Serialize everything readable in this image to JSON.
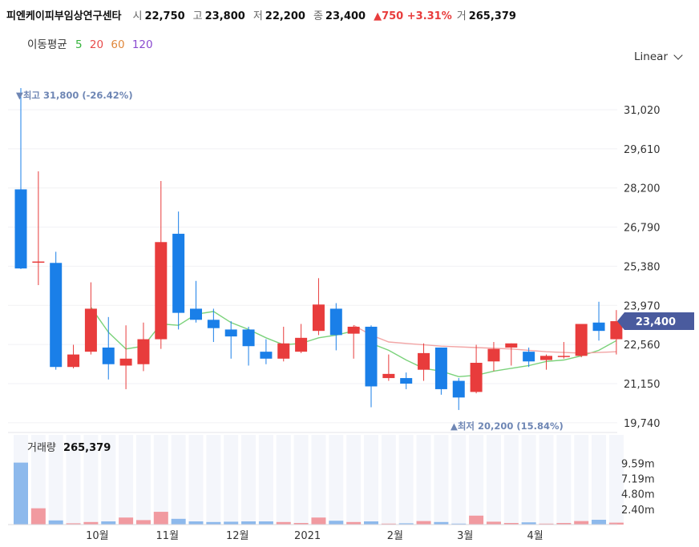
{
  "header": {
    "name": "피엔케이피부임상연구센타",
    "open_label": "시",
    "open": "22,750",
    "high_label": "고",
    "high": "23,800",
    "low_label": "저",
    "low": "22,200",
    "close_label": "종",
    "close": "23,400",
    "change_text": "▲750 +3.31%",
    "volume_label": "거",
    "volume": "265,379"
  },
  "ma_legend": {
    "title": "이동평균",
    "periods": [
      {
        "label": "5",
        "color": "#35b43c"
      },
      {
        "label": "20",
        "color": "#e84b4b"
      },
      {
        "label": "60",
        "color": "#e0873a"
      },
      {
        "label": "120",
        "color": "#8a4ad0"
      }
    ]
  },
  "scale_selector": {
    "label": "Linear"
  },
  "colors": {
    "up": "#e83c3c",
    "down": "#1a7fe8",
    "ma5": "#7ad27a",
    "ma20": "#f2a5a5",
    "current_tag": "#4a5b9e"
  },
  "chart_data": {
    "type": "candlestick",
    "price_axis": {
      "ticks": [
        31020,
        29610,
        28200,
        26790,
        25380,
        23970,
        22560,
        21150,
        19740
      ],
      "tick_labels": [
        "31,020",
        "29,610",
        "28,200",
        "26,790",
        "25,380",
        "23,970",
        "22,560",
        "21,150",
        "19,740"
      ]
    },
    "current_price": {
      "value": 23400,
      "label": "23,400"
    },
    "annotations": {
      "high": {
        "value": 31800,
        "text": "▼최고 31,800 (-26.42%)"
      },
      "low": {
        "value": 20200,
        "text": "▲최저 20,200 (15.84%)"
      }
    },
    "x_labels": [
      {
        "index": 4,
        "label": "10월"
      },
      {
        "index": 8,
        "label": "11월"
      },
      {
        "index": 12,
        "label": "12월"
      },
      {
        "index": 16,
        "label": "2021"
      },
      {
        "index": 21,
        "label": "2월"
      },
      {
        "index": 25,
        "label": "3월"
      },
      {
        "index": 29,
        "label": "4월"
      }
    ],
    "candles": [
      {
        "o": 28150,
        "h": 31800,
        "l": 25280,
        "c": 25300
      },
      {
        "o": 25550,
        "h": 28800,
        "l": 24700,
        "c": 25550
      },
      {
        "o": 25500,
        "h": 25900,
        "l": 21650,
        "c": 21750
      },
      {
        "o": 21750,
        "h": 22550,
        "l": 21700,
        "c": 22200
      },
      {
        "o": 22300,
        "h": 24800,
        "l": 22200,
        "c": 23850
      },
      {
        "o": 22450,
        "h": 23550,
        "l": 21300,
        "c": 21850
      },
      {
        "o": 21800,
        "h": 23250,
        "l": 20950,
        "c": 22050
      },
      {
        "o": 21850,
        "h": 23350,
        "l": 21600,
        "c": 22750
      },
      {
        "o": 22750,
        "h": 28450,
        "l": 22400,
        "c": 26250
      },
      {
        "o": 26550,
        "h": 27350,
        "l": 23100,
        "c": 23700
      },
      {
        "o": 23850,
        "h": 24850,
        "l": 23350,
        "c": 23450
      },
      {
        "o": 23450,
        "h": 23850,
        "l": 22650,
        "c": 23150
      },
      {
        "o": 23100,
        "h": 23400,
        "l": 22050,
        "c": 22850
      },
      {
        "o": 23100,
        "h": 23200,
        "l": 21800,
        "c": 22500
      },
      {
        "o": 22300,
        "h": 22750,
        "l": 21850,
        "c": 22050
      },
      {
        "o": 22050,
        "h": 23200,
        "l": 21950,
        "c": 22600
      },
      {
        "o": 22300,
        "h": 23300,
        "l": 22250,
        "c": 22800
      },
      {
        "o": 23050,
        "h": 24950,
        "l": 22900,
        "c": 24000
      },
      {
        "o": 23850,
        "h": 24050,
        "l": 22350,
        "c": 22900
      },
      {
        "o": 22950,
        "h": 23250,
        "l": 22050,
        "c": 23200
      },
      {
        "o": 23200,
        "h": 23250,
        "l": 20300,
        "c": 21050
      },
      {
        "o": 21350,
        "h": 22200,
        "l": 21250,
        "c": 21500
      },
      {
        "o": 21350,
        "h": 21550,
        "l": 20950,
        "c": 21150
      },
      {
        "o": 21650,
        "h": 22600,
        "l": 21250,
        "c": 22250
      },
      {
        "o": 22450,
        "h": 22450,
        "l": 20750,
        "c": 20950
      },
      {
        "o": 21250,
        "h": 21350,
        "l": 20200,
        "c": 20650
      },
      {
        "o": 20850,
        "h": 22550,
        "l": 20800,
        "c": 21900
      },
      {
        "o": 21950,
        "h": 22650,
        "l": 21600,
        "c": 22400
      },
      {
        "o": 22450,
        "h": 22600,
        "l": 21800,
        "c": 22600
      },
      {
        "o": 22300,
        "h": 22450,
        "l": 21750,
        "c": 21950
      },
      {
        "o": 22000,
        "h": 22200,
        "l": 21650,
        "c": 22150
      },
      {
        "o": 22150,
        "h": 22650,
        "l": 22050,
        "c": 22150
      },
      {
        "o": 22150,
        "h": 23300,
        "l": 22100,
        "c": 23300
      },
      {
        "o": 23350,
        "h": 24100,
        "l": 22700,
        "c": 23050
      },
      {
        "o": 22750,
        "h": 23800,
        "l": 22200,
        "c": 23400
      }
    ],
    "ma5": [
      null,
      null,
      null,
      null,
      {
        "i": 4,
        "v": 23900
      },
      {
        "i": 5,
        "v": 23000
      },
      {
        "i": 6,
        "v": 22400
      },
      {
        "i": 7,
        "v": 22500
      },
      {
        "i": 8,
        "v": 23300
      },
      {
        "i": 9,
        "v": 23250
      },
      {
        "i": 10,
        "v": 23650
      },
      {
        "i": 11,
        "v": 23750
      },
      {
        "i": 12,
        "v": 23350
      },
      {
        "i": 13,
        "v": 23100
      },
      {
        "i": 14,
        "v": 22800
      },
      {
        "i": 15,
        "v": 22550
      },
      {
        "i": 16,
        "v": 22600
      },
      {
        "i": 17,
        "v": 22800
      },
      {
        "i": 18,
        "v": 22900
      },
      {
        "i": 19,
        "v": 23050
      }
    ],
    "ma20": [
      {
        "i": 19,
        "v": 23250
      },
      {
        "i": 20,
        "v": 22900
      },
      {
        "i": 21,
        "v": 22650
      },
      {
        "i": 22,
        "v": 22600
      },
      {
        "i": 24,
        "v": 22500
      },
      {
        "i": 26,
        "v": 22450
      },
      {
        "i": 28,
        "v": 22400
      },
      {
        "i": 30,
        "v": 22300
      },
      {
        "i": 32,
        "v": 22250
      },
      {
        "i": 34,
        "v": 22300
      }
    ],
    "ma5_tail": [
      {
        "i": 20,
        "v": 22600
      },
      {
        "i": 21,
        "v": 22350
      },
      {
        "i": 22,
        "v": 22000
      },
      {
        "i": 23,
        "v": 21700
      },
      {
        "i": 24,
        "v": 21600
      },
      {
        "i": 25,
        "v": 21400
      },
      {
        "i": 26,
        "v": 21450
      },
      {
        "i": 27,
        "v": 21600
      },
      {
        "i": 28,
        "v": 21700
      },
      {
        "i": 29,
        "v": 21800
      },
      {
        "i": 30,
        "v": 21950
      },
      {
        "i": 31,
        "v": 22000
      },
      {
        "i": 32,
        "v": 22150
      },
      {
        "i": 33,
        "v": 22350
      },
      {
        "i": 34,
        "v": 22700
      }
    ],
    "volume_axis": {
      "ticks": [
        9590000,
        7190000,
        4800000,
        2400000
      ],
      "tick_labels": [
        "9.59m",
        "7.19m",
        "4.80m",
        "2.40m"
      ]
    },
    "volume_title": {
      "label": "거래량",
      "value": "265,379"
    },
    "volumes": [
      9700000,
      2550000,
      650000,
      200000,
      400000,
      500000,
      1100000,
      700000,
      2000000,
      900000,
      500000,
      400000,
      450000,
      500000,
      500000,
      400000,
      250000,
      1100000,
      600000,
      400000,
      500000,
      150000,
      200000,
      550000,
      400000,
      150000,
      1400000,
      450000,
      250000,
      350000,
      150000,
      250000,
      550000,
      750000,
      300000
    ]
  }
}
